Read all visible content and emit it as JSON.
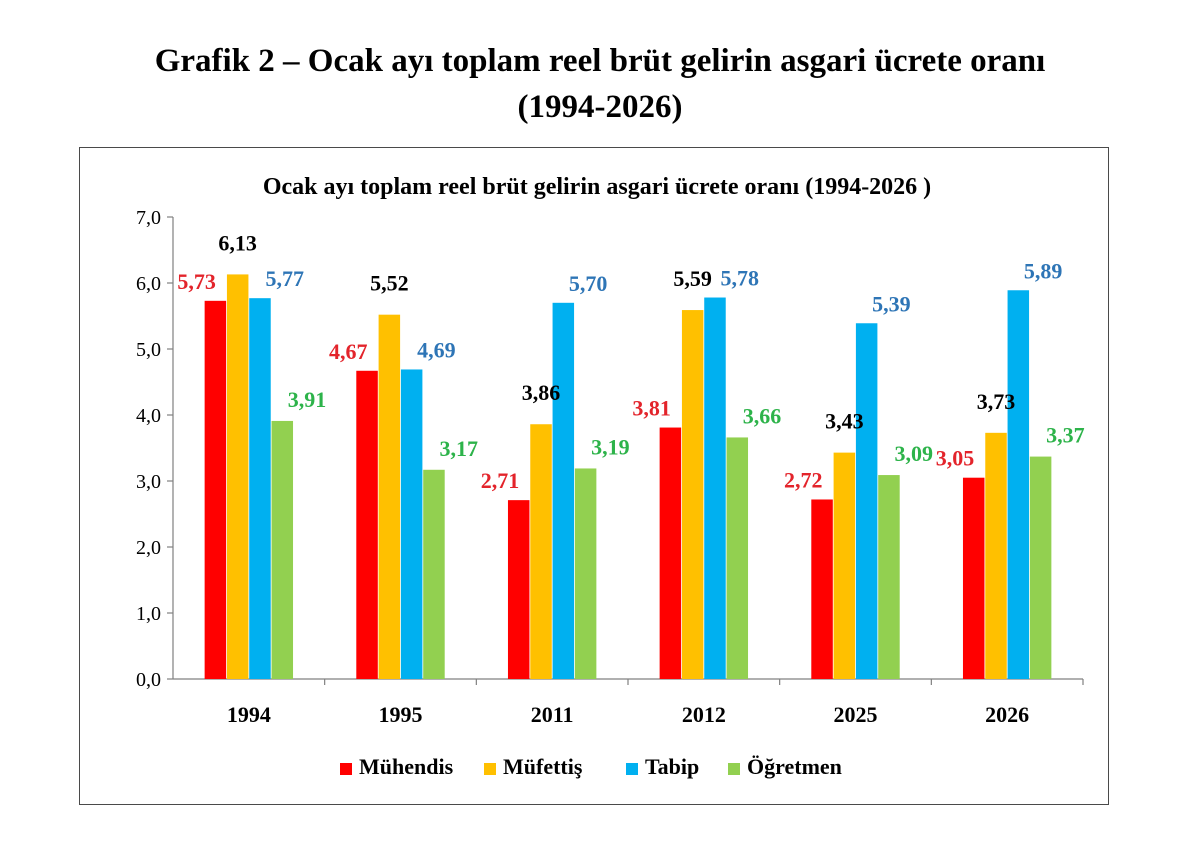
{
  "page": {
    "title_line1": "Grafik 2 – Ocak ayı toplam reel brüt gelirin asgari ücrete oranı",
    "title_line2": "(1994-2026)"
  },
  "chart_data": {
    "type": "bar",
    "title": "Ocak ayı toplam reel brüt gelirin asgari ücrete oranı (1994-2026 )",
    "xlabel": "",
    "ylabel": "",
    "ylim": [
      0,
      7
    ],
    "yticks": [
      "0,0",
      "1,0",
      "2,0",
      "3,0",
      "4,0",
      "5,0",
      "6,0",
      "7,0"
    ],
    "categories": [
      "1994",
      "1995",
      "2011",
      "2012",
      "2025",
      "2026"
    ],
    "grid": false,
    "legend_position": "bottom",
    "series": [
      {
        "name": "Mühendis",
        "color": "#ff0000",
        "label_color": "#e3242b",
        "values": [
          5.73,
          4.67,
          2.71,
          3.81,
          2.72,
          3.05
        ],
        "labels": [
          "5,73",
          "4,67",
          "2,71",
          "3,81",
          "2,72",
          "3,05"
        ]
      },
      {
        "name": "Müfettiş",
        "color": "#ffc000",
        "label_color": "#000000",
        "values": [
          6.13,
          5.52,
          3.86,
          5.59,
          3.43,
          3.73
        ],
        "labels": [
          "6,13",
          "5,52",
          "3,86",
          "5,59",
          "3,43",
          "3,73"
        ]
      },
      {
        "name": "Tabip",
        "color": "#00b0f0",
        "label_color": "#2e75b6",
        "values": [
          5.77,
          4.69,
          5.7,
          5.78,
          5.39,
          5.89
        ],
        "labels": [
          "5,77",
          "4,69",
          "5,70",
          "5,78",
          "5,39",
          "5,89"
        ]
      },
      {
        "name": "Öğretmen",
        "color": "#92d050",
        "label_color": "#2db34a",
        "values": [
          3.91,
          3.17,
          3.19,
          3.66,
          3.09,
          3.37
        ],
        "labels": [
          "3,91",
          "3,17",
          "3,19",
          "3,66",
          "3,09",
          "3,37"
        ]
      }
    ]
  }
}
